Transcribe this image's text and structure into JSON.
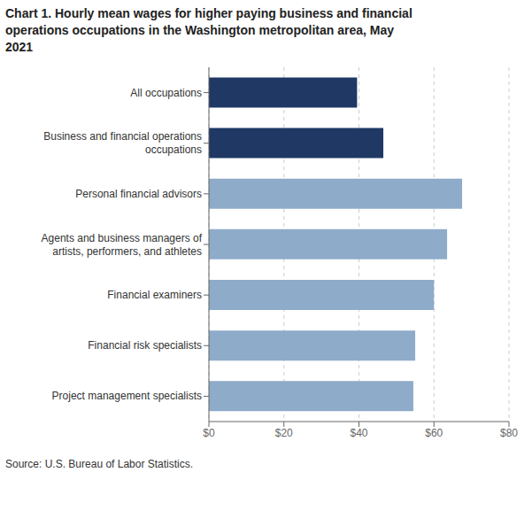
{
  "chart_data": {
    "type": "bar",
    "orientation": "horizontal",
    "title": "Chart 1. Hourly mean wages for higher paying business and financial\noperations occupations in the Washington metropolitan area, May\n2021",
    "categories": [
      "All occupations",
      "Business and financial operations\noccupations",
      "Personal financial advisors",
      "Agents and business managers of\nartists, performers, and athletes",
      "Financial examiners",
      "Financial risk specialists",
      "Project management specialists"
    ],
    "values": [
      39.5,
      46.5,
      67.5,
      63.5,
      60.0,
      55.0,
      54.5
    ],
    "colors": [
      "#1f3864",
      "#1f3864",
      "#8eabc9",
      "#8eabc9",
      "#8eabc9",
      "#8eabc9",
      "#8eabc9"
    ],
    "xlim": [
      0,
      80
    ],
    "xticks": [
      {
        "value": 0,
        "label": "$0"
      },
      {
        "value": 20,
        "label": "$20"
      },
      {
        "value": 40,
        "label": "$40"
      },
      {
        "value": 60,
        "label": "$60"
      },
      {
        "value": 80,
        "label": "$80"
      }
    ],
    "grid": true,
    "annotations": [
      "Source: U.S. Bureau of Labor Statistics."
    ]
  }
}
